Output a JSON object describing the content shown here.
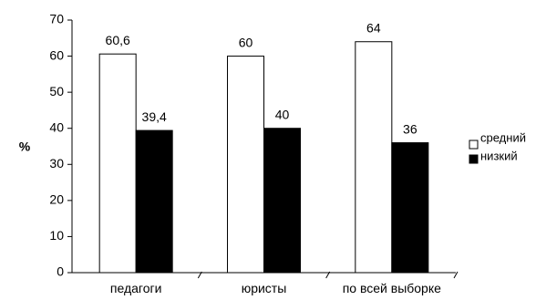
{
  "chart_data": {
    "type": "bar",
    "categories": [
      "педагоги",
      "юристы",
      "по всей выборке"
    ],
    "series": [
      {
        "name": "средний",
        "values": [
          60.6,
          60,
          64
        ],
        "labels": [
          "60,6",
          "60",
          "64"
        ],
        "fill": "#ffffff",
        "stroke": "#000000"
      },
      {
        "name": "низкий",
        "values": [
          39.4,
          40,
          36
        ],
        "labels": [
          "39,4",
          "40",
          "36"
        ],
        "fill": "#000000",
        "stroke": "#000000"
      }
    ],
    "ylabel": "%",
    "ylim": [
      0,
      70
    ],
    "yticks": [
      "0",
      "10",
      "20",
      "30",
      "40",
      "50",
      "60",
      "70"
    ],
    "legend_position": "right",
    "grid": false
  }
}
